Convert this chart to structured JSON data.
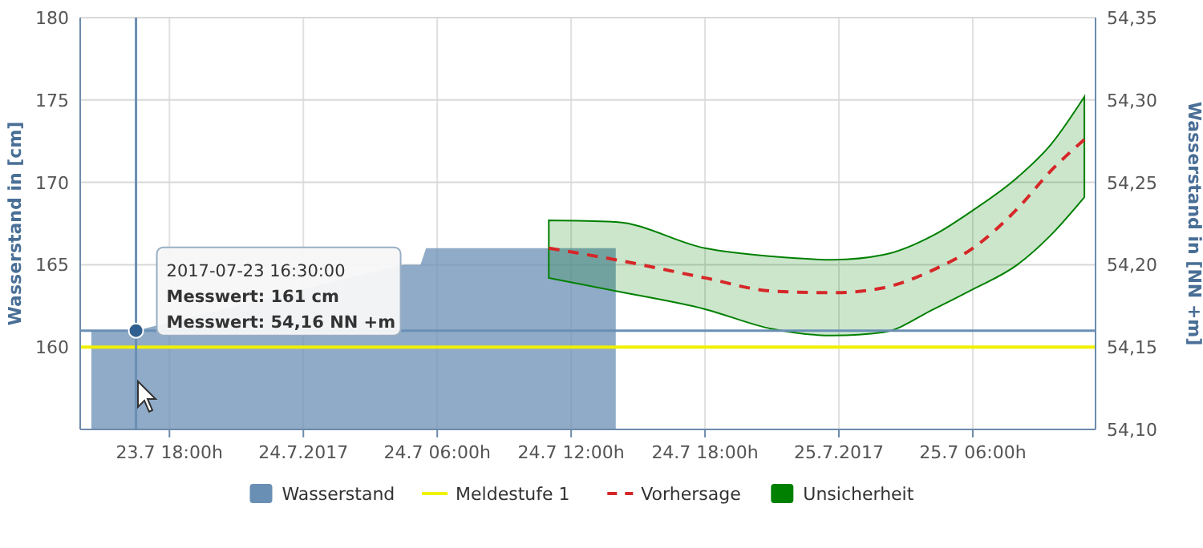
{
  "chart_data": {
    "type": "area",
    "ylabel": "Wasserstand in [cm]",
    "y2label": "Wasserstand in [NN +m]",
    "xlim": [
      "2017-07-23T14:00",
      "2017-07-25T11:30"
    ],
    "xticks": [
      {
        "value": "2017-07-23T18:00",
        "label": "23.7 18:00h"
      },
      {
        "value": "2017-07-24T00:00",
        "label": "24.7.2017"
      },
      {
        "value": "2017-07-24T06:00",
        "label": "24.7 06:00h"
      },
      {
        "value": "2017-07-24T12:00",
        "label": "24.7 12:00h"
      },
      {
        "value": "2017-07-24T18:00",
        "label": "24.7 18:00h"
      },
      {
        "value": "2017-07-25T00:00",
        "label": "25.7.2017"
      },
      {
        "value": "2017-07-25T06:00",
        "label": "25.7 06:00h"
      }
    ],
    "ylim": [
      155,
      180
    ],
    "yticks": [
      160,
      165,
      170,
      175,
      180
    ],
    "y2lim": [
      54.1,
      54.35
    ],
    "y2ticks": [
      {
        "value": 54.1,
        "label": "54,10"
      },
      {
        "value": 54.15,
        "label": "54,15"
      },
      {
        "value": 54.2,
        "label": "54,20"
      },
      {
        "value": 54.25,
        "label": "54,25"
      },
      {
        "value": 54.3,
        "label": "54,30"
      },
      {
        "value": 54.35,
        "label": "54,35"
      }
    ],
    "grid": true,
    "legend": "bottom",
    "series": [
      {
        "name": "Wasserstand",
        "color": "#6a8fb4",
        "x": [
          "2017-07-23T14:30",
          "2017-07-23T16:30",
          "2017-07-24T04:30",
          "2017-07-24T05:15",
          "2017-07-24T05:30",
          "2017-07-24T14:00"
        ],
        "values": [
          161,
          161,
          165,
          165,
          166,
          166
        ]
      },
      {
        "name": "Meldestufe 1",
        "type": "line",
        "color": "#f0f000",
        "x": [
          "2017-07-23T14:00",
          "2017-07-25T11:30"
        ],
        "values": [
          160,
          160
        ]
      },
      {
        "name": "Vorhersage",
        "type": "line",
        "line_style": "dashed",
        "color": "#d62728",
        "x": [
          "2017-07-24T11:00",
          "2017-07-24T14:00",
          "2017-07-24T18:00",
          "2017-07-24T21:00",
          "2017-07-24T23:45",
          "2017-07-25T02:00",
          "2017-07-25T04:15",
          "2017-07-25T06:00",
          "2017-07-25T08:00",
          "2017-07-25T09:30",
          "2017-07-25T11:00"
        ],
        "values": [
          166.0,
          165.3,
          164.2,
          163.4,
          163.3,
          163.6,
          164.7,
          166.0,
          168.4,
          170.7,
          172.6
        ],
        "lower": [
          164.2,
          163.4,
          162.3,
          161.1,
          160.7,
          160.9,
          162.3,
          163.5,
          165.0,
          166.8,
          169.1
        ],
        "upper": [
          167.7,
          167.6,
          166.0,
          165.5,
          165.3,
          165.6,
          166.8,
          168.3,
          170.3,
          172.3,
          175.2
        ]
      },
      {
        "name": "Unsicherheit",
        "type": "area",
        "color": "#008000"
      }
    ],
    "ref_lines": [
      {
        "axis": "x",
        "value": "2017-07-23T16:30",
        "color": "#6a8fb4"
      },
      {
        "axis": "y",
        "value": 161,
        "color": "#6a8fb4"
      }
    ],
    "annotations": [
      "2017-07-23 16:30:00",
      "Messwert: 161 cm",
      "Messwert: 54,16 NN +m"
    ]
  }
}
